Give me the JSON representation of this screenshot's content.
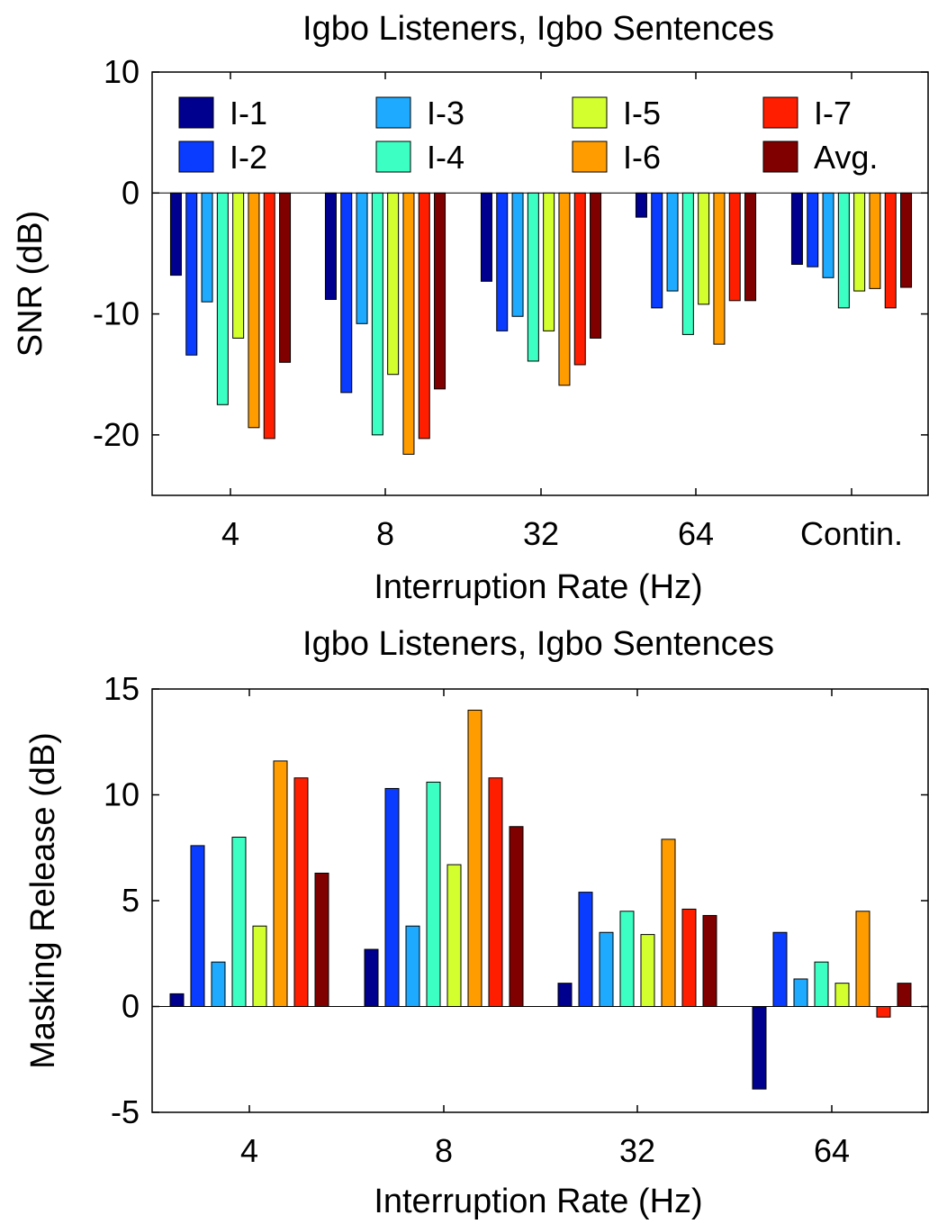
{
  "chart_data": [
    {
      "type": "bar",
      "title": "Igbo Listeners, Igbo Sentences",
      "xlabel": "Interruption Rate (Hz)",
      "ylabel": "SNR (dB)",
      "categories": [
        "4",
        "8",
        "32",
        "64",
        "Contin."
      ],
      "ylim": [
        -25,
        10
      ],
      "yticks": [
        -20,
        -10,
        0,
        10
      ],
      "legend_position": "top",
      "series": [
        {
          "name": "I-1",
          "color": "#00008f",
          "values": [
            -6.8,
            -8.8,
            -7.3,
            -2.0,
            -5.9
          ]
        },
        {
          "name": "I-2",
          "color": "#0a3cff",
          "values": [
            -13.4,
            -16.5,
            -11.4,
            -9.5,
            -6.1
          ]
        },
        {
          "name": "I-3",
          "color": "#1eaaff",
          "values": [
            -9.0,
            -10.8,
            -10.2,
            -8.1,
            -7.0
          ]
        },
        {
          "name": "I-4",
          "color": "#3cffc3",
          "values": [
            -17.5,
            -20.0,
            -13.9,
            -11.7,
            -9.5
          ]
        },
        {
          "name": "I-5",
          "color": "#d2ff2d",
          "values": [
            -12.0,
            -15.0,
            -11.4,
            -9.2,
            -8.1
          ]
        },
        {
          "name": "I-6",
          "color": "#ff9c00",
          "values": [
            -19.4,
            -21.6,
            -15.9,
            -12.5,
            -7.9
          ]
        },
        {
          "name": "I-7",
          "color": "#ff1e00",
          "values": [
            -20.3,
            -20.3,
            -14.2,
            -8.9,
            -9.5
          ]
        },
        {
          "name": "Avg.",
          "color": "#800000",
          "values": [
            -14.0,
            -16.2,
            -12.0,
            -8.9,
            -7.8
          ]
        }
      ]
    },
    {
      "type": "bar",
      "title": "Igbo Listeners, Igbo Sentences",
      "xlabel": "Interruption Rate (Hz)",
      "ylabel": "Masking Release (dB)",
      "categories": [
        "4",
        "8",
        "32",
        "64"
      ],
      "ylim": [
        -5,
        15
      ],
      "yticks": [
        -5,
        0,
        5,
        10,
        15
      ],
      "series": [
        {
          "name": "I-1",
          "color": "#00008f",
          "values": [
            0.6,
            2.7,
            1.1,
            -3.9
          ]
        },
        {
          "name": "I-2",
          "color": "#0a3cff",
          "values": [
            7.6,
            10.3,
            5.4,
            3.5
          ]
        },
        {
          "name": "I-3",
          "color": "#1eaaff",
          "values": [
            2.1,
            3.8,
            3.5,
            1.3
          ]
        },
        {
          "name": "I-4",
          "color": "#3cffc3",
          "values": [
            8.0,
            10.6,
            4.5,
            2.1
          ]
        },
        {
          "name": "I-5",
          "color": "#d2ff2d",
          "values": [
            3.8,
            6.7,
            3.4,
            1.1
          ]
        },
        {
          "name": "I-6",
          "color": "#ff9c00",
          "values": [
            11.6,
            14.0,
            7.9,
            4.5
          ]
        },
        {
          "name": "I-7",
          "color": "#ff1e00",
          "values": [
            10.8,
            10.8,
            4.6,
            -0.5
          ]
        },
        {
          "name": "Avg.",
          "color": "#800000",
          "values": [
            6.3,
            8.5,
            4.3,
            1.1
          ]
        }
      ]
    }
  ]
}
